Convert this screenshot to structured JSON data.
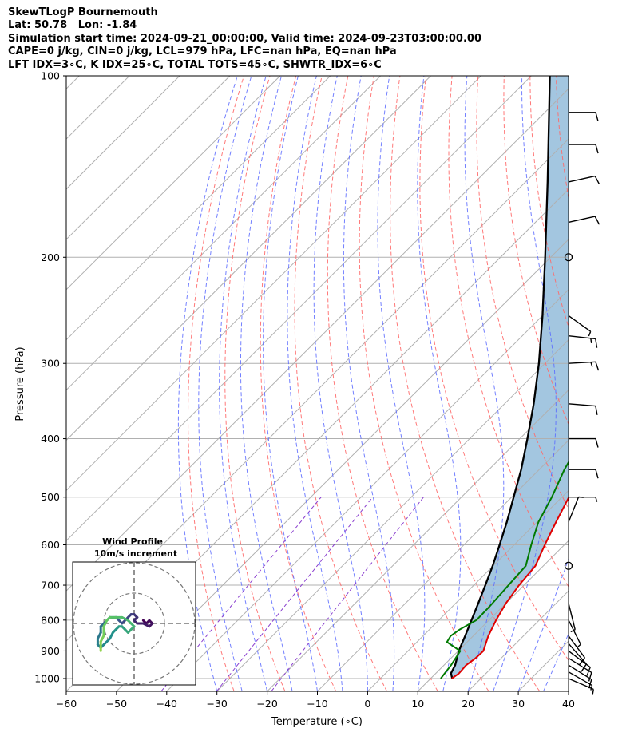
{
  "header": {
    "line1": "SkewTLogP Bournemouth",
    "line2": "Lat: 50.78   Lon: -1.84",
    "line3": "Simulation start time: 2024-09-21_00:00:00, Valid time: 2024-09-23T03:00:00.00",
    "line4": "CAPE=0 j/kg, CIN=0 j/kg, LCL=979 hPa, LFC=nan hPa, EQ=nan hPa",
    "line5": "LFT IDX=3∘C, K IDX=25∘C, TOTAL TOTS=45∘C, SHWTR_IDX=6∘C"
  },
  "chart_data": {
    "type": "line",
    "xlabel": "Temperature (∘C)",
    "ylabel": "Pressure (hPa)",
    "xlim": [
      -60,
      40
    ],
    "ylim": [
      1050,
      100
    ],
    "y_scale": "log",
    "skew": "45 deg isotherms",
    "grid": true,
    "x_ticks": [
      "−60",
      "−50",
      "−40",
      "−30",
      "−20",
      "−10",
      "0",
      "10",
      "20",
      "30",
      "40"
    ],
    "x_tick_values": [
      -60,
      -50,
      -40,
      -30,
      -20,
      -10,
      0,
      10,
      20,
      30,
      40
    ],
    "y_ticks": [
      "100",
      "200",
      "300",
      "400",
      "500",
      "600",
      "700",
      "800",
      "900",
      "1000"
    ],
    "y_tick_values": [
      100,
      200,
      300,
      400,
      500,
      600,
      700,
      800,
      900,
      1000
    ],
    "colors": {
      "temperature": "#e00000",
      "dewpoint": "#007a00",
      "parcel": "#000000",
      "fill": "#a3c6e0",
      "dry_adiabat": "#ff6a6a",
      "moist_adiabat": "#5a6aff",
      "mixing_ratio": "#8a3fcf",
      "isotherm": "#b0b0b0"
    },
    "series": [
      {
        "key": "temperature",
        "points": [
          [
            1000,
            14.2
          ],
          [
            980,
            14.6
          ],
          [
            950,
            14.4
          ],
          [
            925,
            14.9
          ],
          [
            900,
            15.0
          ],
          [
            850,
            13.0
          ],
          [
            800,
            11.4
          ],
          [
            750,
            10.0
          ],
          [
            700,
            9.0
          ],
          [
            650,
            8.4
          ],
          [
            600,
            6.1
          ],
          [
            550,
            3.8
          ],
          [
            500,
            1.4
          ],
          [
            450,
            -1.6
          ],
          [
            400,
            -5.0
          ],
          [
            350,
            -8.0
          ],
          [
            300,
            -13.3
          ],
          [
            290,
            -14.8
          ],
          [
            280,
            -16.3
          ],
          [
            270,
            -17.6
          ],
          [
            260,
            -19.0
          ],
          [
            250,
            -21.3
          ],
          [
            240,
            -23.4
          ],
          [
            230,
            -24.9
          ],
          [
            220,
            -27.0
          ],
          [
            210,
            -30.8
          ],
          [
            200,
            -33.8
          ],
          [
            190,
            -36.5
          ],
          [
            180,
            -38.6
          ],
          [
            170,
            -42.0
          ],
          [
            160,
            -45.0
          ],
          [
            150,
            -48.1
          ],
          [
            140,
            -51.5
          ],
          [
            130,
            -54.4
          ],
          [
            120,
            -57.9
          ],
          [
            110,
            -62.0
          ],
          [
            100,
            -65.9
          ]
        ]
      },
      {
        "key": "dewpoint",
        "points": [
          [
            1000,
            12.0
          ],
          [
            950,
            11.4
          ],
          [
            900,
            10.4
          ],
          [
            870,
            6.0
          ],
          [
            850,
            5.5
          ],
          [
            830,
            6.0
          ],
          [
            800,
            7.5
          ],
          [
            760,
            7.4
          ],
          [
            700,
            6.9
          ],
          [
            650,
            6.5
          ],
          [
            600,
            3.4
          ],
          [
            550,
            0.3
          ],
          [
            500,
            -2.0
          ],
          [
            450,
            -5.0
          ],
          [
            400,
            -7.6
          ],
          [
            370,
            -10.8
          ],
          [
            360,
            -11.7
          ],
          [
            340,
            -11.9
          ],
          [
            320,
            -12.8
          ],
          [
            300,
            -15.2
          ],
          [
            280,
            -17.1
          ],
          [
            260,
            -18.0
          ],
          [
            240,
            -20.7
          ],
          [
            220,
            -22.8
          ],
          [
            210,
            -25.8
          ],
          [
            200,
            -29.4
          ],
          [
            190,
            -33.4
          ],
          [
            180,
            -37.0
          ],
          [
            170,
            -41.6
          ],
          [
            160,
            -46.5
          ],
          [
            150,
            -50.8
          ],
          [
            140,
            -54.7
          ],
          [
            130,
            -59.1
          ],
          [
            120,
            -64.0
          ],
          [
            110,
            -68.7
          ],
          [
            100,
            -73.1
          ]
        ]
      },
      {
        "key": "parcel",
        "points": [
          [
            1000,
            14.3
          ],
          [
            980,
            13.0
          ],
          [
            950,
            12.2
          ],
          [
            900,
            10.1
          ],
          [
            850,
            8.4
          ],
          [
            800,
            6.5
          ],
          [
            750,
            4.5
          ],
          [
            700,
            2.3
          ],
          [
            650,
            -0.1
          ],
          [
            600,
            -2.9
          ],
          [
            550,
            -6.0
          ],
          [
            500,
            -9.6
          ],
          [
            450,
            -13.6
          ],
          [
            400,
            -18.5
          ],
          [
            350,
            -24.2
          ],
          [
            300,
            -31.2
          ],
          [
            250,
            -40.0
          ],
          [
            200,
            -51.1
          ],
          [
            150,
            -65.6
          ],
          [
            100,
            -86.3
          ]
        ]
      }
    ],
    "wind_barbs": [
      {
        "p": 1000,
        "u": -7,
        "v": 3
      },
      {
        "p": 975,
        "u": -7,
        "v": 4
      },
      {
        "p": 950,
        "u": -8,
        "v": 5
      },
      {
        "p": 925,
        "u": -8,
        "v": 5
      },
      {
        "p": 900,
        "u": -8,
        "v": 6
      },
      {
        "p": 875,
        "u": -7,
        "v": 8
      },
      {
        "p": 850,
        "u": -6,
        "v": 8
      },
      {
        "p": 800,
        "u": -3,
        "v": 6
      },
      {
        "p": 750,
        "u": -1,
        "v": 4
      },
      {
        "p": 650,
        "u": 0,
        "v": 0
      },
      {
        "p": 550,
        "u": -2,
        "v": -5
      },
      {
        "p": 500,
        "u": -8,
        "v": 0
      },
      {
        "p": 450,
        "u": -10,
        "v": 0
      },
      {
        "p": 400,
        "u": -11,
        "v": 0
      },
      {
        "p": 350,
        "u": -12,
        "v": 1
      },
      {
        "p": 300,
        "u": -18,
        "v": -1
      },
      {
        "p": 270,
        "u": -18,
        "v": 2
      },
      {
        "p": 250,
        "u": -7,
        "v": 5
      },
      {
        "p": 200,
        "u": 0,
        "v": 0
      },
      {
        "p": 175,
        "u": -9,
        "v": -2
      },
      {
        "p": 150,
        "u": -9,
        "v": -2
      },
      {
        "p": 130,
        "u": -9,
        "v": 0
      },
      {
        "p": 115,
        "u": -9,
        "v": 0
      }
    ],
    "hodograph": {
      "title": "Wind Profile",
      "subtitle": "10m/s increment",
      "points": [
        [
          3,
          1
        ],
        [
          4,
          0
        ],
        [
          5,
          1
        ],
        [
          6,
          0
        ],
        [
          5,
          -1
        ],
        [
          3,
          0
        ],
        [
          1,
          0
        ],
        [
          0,
          1
        ],
        [
          1,
          2
        ],
        [
          0,
          3
        ],
        [
          -1,
          3
        ],
        [
          -2,
          2
        ],
        [
          -3,
          1
        ],
        [
          -4,
          0
        ],
        [
          -5,
          1
        ],
        [
          -6,
          2
        ],
        [
          -7,
          2
        ],
        [
          -8,
          2
        ],
        [
          -9,
          1
        ],
        [
          -10,
          0
        ],
        [
          -11,
          -1
        ],
        [
          -11,
          -3
        ],
        [
          -12,
          -5
        ],
        [
          -12,
          -7
        ],
        [
          -11,
          -8
        ],
        [
          -10,
          -7
        ],
        [
          -8,
          -5
        ],
        [
          -7,
          -3
        ],
        [
          -6,
          -2
        ],
        [
          -5,
          -1
        ],
        [
          -4,
          -1
        ],
        [
          -3,
          -2
        ],
        [
          -2,
          -3
        ],
        [
          -1,
          -2
        ],
        [
          0,
          -1
        ],
        [
          -1,
          0
        ],
        [
          -2,
          1
        ],
        [
          -4,
          2
        ],
        [
          -6,
          2
        ],
        [
          -8,
          2
        ],
        [
          -9,
          1
        ],
        [
          -10,
          -1
        ],
        [
          -10,
          -4
        ],
        [
          -11,
          -6
        ],
        [
          -11,
          -8
        ],
        [
          -11,
          -9
        ]
      ]
    }
  }
}
